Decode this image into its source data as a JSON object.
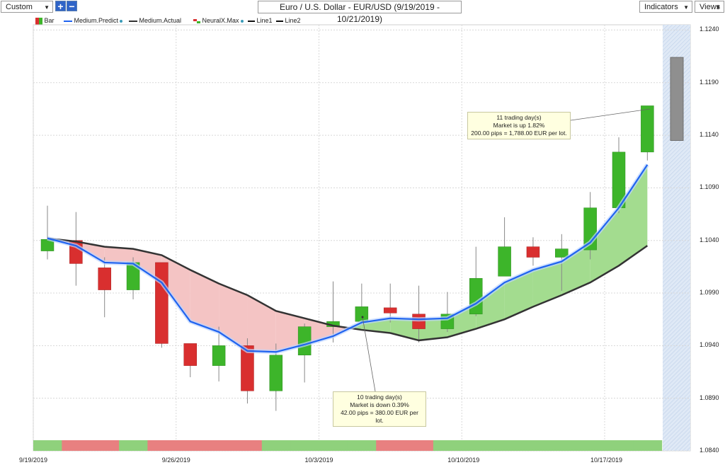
{
  "toolbar": {
    "mode_select": "Custom",
    "add_label": "+",
    "remove_label": "−",
    "title": "Euro / U.S. Dollar - EUR/USD (9/19/2019 - 10/21/2019)",
    "indicators_label": "Indicators",
    "views_label": "Views"
  },
  "legend": {
    "bar": "Bar",
    "medium_predict": "Medium.Predict",
    "medium_actual": "Medium.Actual",
    "neuralx_max": "NeuralX.Max",
    "line1": "Line1",
    "line2": "Line2"
  },
  "annotations": {
    "up": [
      "11 trading day(s)",
      "Market is up 1.82%",
      "200.00 pips = 1,788.00 EUR per lot."
    ],
    "down": [
      "10 trading day(s)",
      "Market is down 0.39%",
      "42.00 pips = 380.00 EUR per lot."
    ]
  },
  "colors": {
    "up": "#3db52a",
    "down": "#d92f2f",
    "predict": "#1f63f0",
    "actual": "#333333",
    "fill_up": "#a3dc8f",
    "fill_down": "#f4c4c4",
    "strip_up": "#8fd17c",
    "strip_down": "#e88080"
  },
  "chart_data": {
    "type": "candlestick",
    "ylim": [
      1.084,
      1.1245
    ],
    "yticks": [
      1.084,
      1.089,
      1.094,
      1.099,
      1.104,
      1.109,
      1.114,
      1.119,
      1.124
    ],
    "ytick_labels": [
      "1.0840",
      "1.0890",
      "1.0940",
      "1.0990",
      "1.1040",
      "1.1090",
      "1.1140",
      "1.1190",
      "1.1240"
    ],
    "xtick_labels": [
      "9/19/2019",
      "9/26/2019",
      "10/3/2019",
      "10/10/2019",
      "10/17/2019"
    ],
    "xtick_index": [
      0,
      5,
      10,
      15,
      20
    ],
    "candles": [
      {
        "o": 1.103,
        "h": 1.1073,
        "l": 1.1022,
        "c": 1.1041
      },
      {
        "o": 1.104,
        "h": 1.1067,
        "l": 1.0997,
        "c": 1.1018
      },
      {
        "o": 1.1014,
        "h": 1.1024,
        "l": 1.0967,
        "c": 1.0993
      },
      {
        "o": 1.0993,
        "h": 1.1024,
        "l": 1.0984,
        "c": 1.1019
      },
      {
        "o": 1.1019,
        "h": 1.1019,
        "l": 1.0938,
        "c": 1.0942
      },
      {
        "o": 1.0942,
        "h": 1.0942,
        "l": 1.091,
        "c": 1.0921
      },
      {
        "o": 1.0921,
        "h": 1.0958,
        "l": 1.0906,
        "c": 1.094
      },
      {
        "o": 1.094,
        "h": 1.0947,
        "l": 1.0885,
        "c": 1.0897
      },
      {
        "o": 1.0897,
        "h": 1.0942,
        "l": 1.0878,
        "c": 1.0931
      },
      {
        "o": 1.0931,
        "h": 1.0961,
        "l": 1.0905,
        "c": 1.0958
      },
      {
        "o": 1.0958,
        "h": 1.1001,
        "l": 1.0943,
        "c": 1.0963
      },
      {
        "o": 1.0963,
        "h": 1.0999,
        "l": 1.096,
        "c": 1.0977
      },
      {
        "o": 1.0976,
        "h": 1.0999,
        "l": 1.0962,
        "c": 1.0971
      },
      {
        "o": 1.097,
        "h": 1.0997,
        "l": 1.0943,
        "c": 1.0956
      },
      {
        "o": 1.0956,
        "h": 1.0991,
        "l": 1.0953,
        "c": 1.097
      },
      {
        "o": 1.097,
        "h": 1.1034,
        "l": 1.0968,
        "c": 1.1004
      },
      {
        "o": 1.1006,
        "h": 1.1062,
        "l": 1.1006,
        "c": 1.1034
      },
      {
        "o": 1.1034,
        "h": 1.1043,
        "l": 1.1016,
        "c": 1.1024
      },
      {
        "o": 1.1024,
        "h": 1.1046,
        "l": 1.0992,
        "c": 1.1032
      },
      {
        "o": 1.1031,
        "h": 1.1086,
        "l": 1.1022,
        "c": 1.1071
      },
      {
        "o": 1.1071,
        "h": 1.1138,
        "l": 1.1066,
        "c": 1.1124
      },
      {
        "o": 1.1124,
        "h": 1.1168,
        "l": 1.1116,
        "c": 1.1168
      }
    ],
    "predict_bar": {
      "top": 1.1214,
      "bottom": 1.1135
    },
    "medium_predict": [
      1.1042,
      1.1035,
      1.1019,
      1.1018,
      1.1,
      1.0963,
      1.0953,
      1.0935,
      1.0934,
      1.0941,
      1.0949,
      1.0962,
      1.0966,
      1.0965,
      1.0966,
      1.098,
      1.1,
      1.1012,
      1.102,
      1.1038,
      1.1071,
      1.1112
    ],
    "medium_actual": [
      1.1042,
      1.1039,
      1.1034,
      1.1032,
      1.1026,
      1.1012,
      1.0999,
      1.0988,
      1.0973,
      1.0966,
      1.0959,
      1.0955,
      1.0952,
      1.0945,
      1.0948,
      1.0956,
      1.0965,
      1.0977,
      1.0988,
      1.1,
      1.1016,
      1.1035
    ],
    "neuralx_strip": [
      "up",
      "down",
      "down",
      "up",
      "down",
      "down",
      "down",
      "down",
      "up",
      "up",
      "up",
      "up",
      "down",
      "down",
      "up",
      "up",
      "up",
      "up",
      "up",
      "up",
      "up",
      "up"
    ]
  }
}
